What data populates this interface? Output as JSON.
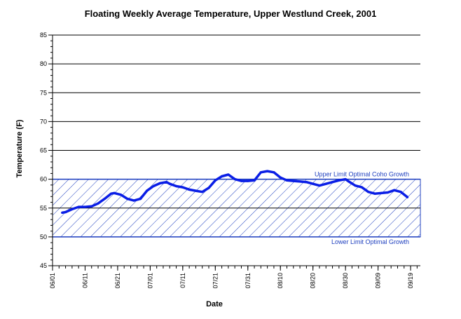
{
  "chart_data": {
    "type": "line",
    "title": "Floating Weekly Average Temperature, Upper Westlund Creek, 2001",
    "xlabel": "Date",
    "ylabel": "Temperature (F)",
    "ylim": [
      45,
      85
    ],
    "y_ticks": [
      45,
      50,
      55,
      60,
      65,
      70,
      75,
      80,
      85
    ],
    "y_tick_labels": [
      "45",
      "50",
      "55",
      "60",
      "65",
      "70",
      "75",
      "80",
      "85"
    ],
    "x_tick_labels": [
      "06/01",
      "06/11",
      "06/21",
      "07/01",
      "07/11",
      "07/21",
      "07/31",
      "08/10",
      "08/20",
      "08/30",
      "09/09",
      "09/19"
    ],
    "x_range_days": [
      0,
      113
    ],
    "x_tick_days": [
      0,
      10,
      20,
      30,
      40,
      50,
      60,
      70,
      80,
      90,
      100,
      110
    ],
    "grid": true,
    "band": {
      "lower": 50,
      "upper": 60,
      "upper_label": "Upper Limit Optimal Coho Growth",
      "lower_label": "Lower Limit Optimal Growth"
    },
    "series": [
      {
        "x_days": [
          3,
          4,
          6,
          8,
          10,
          12,
          14,
          16,
          18,
          19,
          21,
          23,
          25,
          27,
          29,
          31,
          33,
          35,
          36,
          38,
          40,
          42,
          44,
          46,
          48,
          50,
          52,
          54,
          56,
          58,
          60,
          62,
          64,
          66,
          68,
          70,
          72,
          74,
          76,
          78,
          80,
          82,
          84,
          86,
          88,
          90,
          91,
          93,
          95,
          97,
          99,
          101,
          103,
          105,
          107,
          109
        ],
        "values": [
          54.2,
          54.3,
          54.8,
          55.2,
          55.2,
          55.3,
          55.8,
          56.6,
          57.5,
          57.6,
          57.3,
          56.6,
          56.3,
          56.6,
          58.0,
          58.8,
          59.3,
          59.5,
          59.2,
          58.8,
          58.6,
          58.2,
          58.0,
          57.8,
          58.5,
          59.8,
          60.5,
          60.8,
          60.0,
          59.7,
          59.7,
          59.8,
          61.2,
          61.4,
          61.2,
          60.3,
          59.8,
          59.7,
          59.6,
          59.5,
          59.2,
          58.9,
          59.2,
          59.5,
          59.8,
          60.0,
          59.6,
          58.9,
          58.6,
          57.8,
          57.5,
          57.6,
          57.7,
          58.1,
          57.8,
          56.9
        ]
      }
    ]
  }
}
